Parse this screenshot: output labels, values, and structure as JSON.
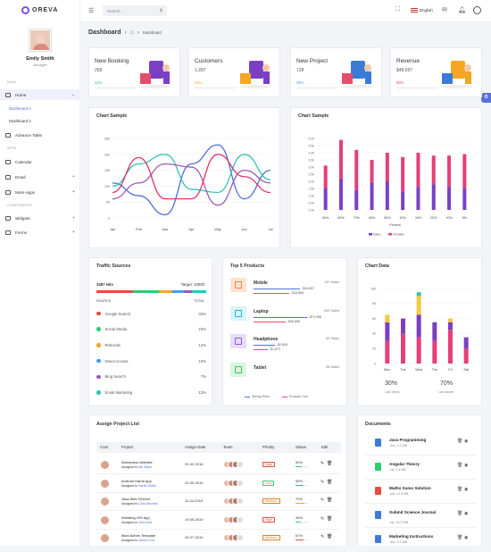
{
  "brand": {
    "name": "OREVA"
  },
  "profile": {
    "name": "Emily Smith",
    "role": "Manager"
  },
  "sidebar": {
    "sections": {
      "main": "MAIN",
      "apps": "APPS",
      "components": "COMPONENTS"
    },
    "items": [
      {
        "label": "Home"
      },
      {
        "label": "Dashboard 1"
      },
      {
        "label": "Dashboard 2"
      },
      {
        "label": "Advance Table"
      },
      {
        "label": "Calendar"
      },
      {
        "label": "Email"
      },
      {
        "label": "More Apps"
      },
      {
        "label": "Widgets"
      },
      {
        "label": "Forms"
      }
    ]
  },
  "topbar": {
    "search_placeholder": "Search...",
    "language": "English"
  },
  "breadcrumb": {
    "title": "Dashboard",
    "current": "Dashboard"
  },
  "stats": [
    {
      "label": "New Booking",
      "value": "258",
      "pct": "42%",
      "frac": 0.42,
      "color": "#2ecc71"
    },
    {
      "label": "Customers",
      "value": "1,287",
      "pct": "20%",
      "frac": 0.2,
      "color": "#f5a623"
    },
    {
      "label": "New Project",
      "value": "128",
      "pct": "25%",
      "frac": 0.25,
      "color": "#3aa0ff"
    },
    {
      "label": "Revenue",
      "value": "$48,697",
      "pct": "65%",
      "frac": 0.65,
      "color": "#e74c6c"
    }
  ],
  "chart1": {
    "title": "Chart Sample",
    "chart_data": {
      "type": "line",
      "categories": [
        "Jan",
        "Feb",
        "Mar",
        "Apr",
        "May",
        "Jun",
        "Jul"
      ],
      "yticks": [
        "0",
        "50",
        "100",
        "150",
        "200",
        "250"
      ],
      "series": [
        {
          "color": "#4a6fd8",
          "values": [
            110,
            70,
            10,
            170,
            230,
            60,
            150
          ]
        },
        {
          "color": "#2ec4b6",
          "values": [
            100,
            170,
            200,
            90,
            80,
            200,
            120
          ]
        },
        {
          "color": "#9b59b6",
          "values": [
            60,
            110,
            170,
            160,
            40,
            150,
            110
          ]
        },
        {
          "color": "#e0356b",
          "values": [
            80,
            190,
            60,
            60,
            200,
            130,
            80
          ]
        }
      ],
      "ylim": [
        0,
        250
      ]
    }
  },
  "chart2": {
    "title": "Chart Sample",
    "xlabel": "Percent",
    "legend": [
      "Sales",
      "Females"
    ],
    "chart_data": {
      "type": "bar",
      "categories": [
        "90%",
        "80%",
        "70%",
        "60%",
        "50%",
        "40%",
        "30%",
        "20%",
        "10%",
        "5%"
      ],
      "yticks": [
        "0.0K",
        "0.5K",
        "1.0K",
        "1.5K",
        "2.0K",
        "2.5K",
        "3.0K",
        "3.5K",
        "4.0K",
        "4.5K",
        "5.0K"
      ],
      "series": [
        {
          "name": "Sales",
          "color": "#7b3fc4",
          "values": [
            1.5,
            2.2,
            1.4,
            1.9,
            2.0,
            1.3,
            1.6,
            1.8,
            1.6,
            1.5
          ]
        },
        {
          "name": "Females",
          "color": "#e63e7a",
          "values": [
            1.6,
            2.7,
            2.8,
            1.6,
            2.0,
            2.4,
            2.4,
            2.0,
            2.2,
            2.4
          ]
        }
      ],
      "ylim": [
        0,
        5
      ]
    }
  },
  "traffic": {
    "title": "Traffic Sources",
    "hits": "3487 Hits",
    "target": "Target: 10000",
    "col_source": "SOURCE",
    "col_total": "TOTAL",
    "rows": [
      {
        "name": "Google Search",
        "total": "33%",
        "color": "#e74c3c"
      },
      {
        "name": "Social Media",
        "total": "23%",
        "color": "#2ecc71"
      },
      {
        "name": "Referrals",
        "total": "12%",
        "color": "#f5a623"
      },
      {
        "name": "Direct Access",
        "total": "10%",
        "color": "#3aa0ff"
      },
      {
        "name": "Bing Search",
        "total": "7%",
        "color": "#9b59b6"
      },
      {
        "name": "Email Marketing",
        "total": "13%",
        "color": "#2ec4b6"
      }
    ]
  },
  "products": {
    "title": "Top 5 Products",
    "legend": [
      "Selling Price",
      "Product Cost"
    ],
    "items": [
      {
        "name": "Mobile",
        "sales": "150 Sales",
        "price": "$24,897",
        "cost": "$18,865",
        "bg": "#fde3d6",
        "fg": "#f0843c"
      },
      {
        "name": "Laptop",
        "sales": "455 Sales",
        "price": "$74,398",
        "cost": "$45,856",
        "bg": "#d7f4fb",
        "fg": "#20b4d6"
      },
      {
        "name": "Headphone",
        "sales": "65 Sales",
        "price": "$2,839",
        "cost": "$1,872",
        "bg": "#e5dcf7",
        "fg": "#8a5ad8"
      },
      {
        "name": "Tablet",
        "sales": "58 Sales",
        "price": "",
        "cost": "",
        "bg": "#daf5df",
        "fg": "#3cc06b"
      }
    ]
  },
  "chartdata": {
    "title": "Chart Data",
    "stat1": "30%",
    "stat1_label": "Last Week",
    "stat2": "70%",
    "stat2_label": "Last Month",
    "chart_data": {
      "type": "bar",
      "categories": [
        "Mon",
        "Tue",
        "Wed",
        "Thu",
        "Fri",
        "Sat"
      ],
      "yticks": [
        "0",
        "20",
        "40",
        "60",
        "80",
        "100"
      ],
      "series": [
        {
          "color": "#e63e7a",
          "values": [
            30,
            40,
            35,
            30,
            45,
            20
          ]
        },
        {
          "color": "#7b3fc4",
          "values": [
            25,
            20,
            30,
            25,
            10,
            15
          ]
        },
        {
          "color": "#f5c842",
          "values": [
            10,
            0,
            25,
            0,
            5,
            0
          ]
        },
        {
          "color": "#2ec4b6",
          "values": [
            0,
            0,
            5,
            0,
            0,
            0
          ]
        }
      ],
      "ylim": [
        0,
        100
      ]
    }
  },
  "projects": {
    "title": "Assign Project List",
    "headers": [
      "Cust.",
      "Project",
      "Assign Date",
      "Team",
      "Priority",
      "Status",
      "Edit"
    ],
    "rows": [
      {
        "name": "Wordpress Website",
        "assigned": "Assigned to",
        "who": "Airi Satou",
        "date": "20-02-2018",
        "priority": "High",
        "pcolor": "#e74c3c",
        "status": "50%",
        "frac": 0.5,
        "scolor": "#2ecc71"
      },
      {
        "name": "Android Game App",
        "assigned": "Assigned to",
        "who": "Sarah Smith",
        "date": "22-05-2019",
        "priority": "Low",
        "pcolor": "#2ecc71",
        "status": "55%",
        "frac": 0.55,
        "scolor": "#3aa0ff"
      },
      {
        "name": "Java Web Service",
        "assigned": "Assigned to",
        "who": "Cara Stevens",
        "date": "11-04-2019",
        "priority": "Medium",
        "pcolor": "#e67e22",
        "status": "70%",
        "frac": 0.7,
        "scolor": "#f5a623"
      },
      {
        "name": "Wedding IOS App",
        "assigned": "Assigned to",
        "who": "John Doe",
        "date": "19-05-2019",
        "priority": "High",
        "pcolor": "#e74c3c",
        "status": "45%",
        "frac": 0.45,
        "scolor": "#2ecc71"
      },
      {
        "name": "Blize Admin Template",
        "assigned": "Assigned to",
        "who": "Ashton Cox",
        "date": "25-07-2019",
        "priority": "Medium",
        "pcolor": "#e67e22",
        "status": "67%",
        "frac": 0.67,
        "scolor": "#e74c3c"
      }
    ]
  },
  "documents": {
    "title": "Documents",
    "items": [
      {
        "name": "Java Programming",
        "meta": ".doc, 4.3 MB",
        "color": "#3a7bd5"
      },
      {
        "name": "Angular Theory",
        "meta": ".xls, 2.5 MB",
        "color": "#2ecc71"
      },
      {
        "name": "Maths Sums Solution",
        "meta": ".pdf, 10.5 MB",
        "color": "#e74c3c"
      },
      {
        "name": "Submit Science Journal",
        "meta": ".zip, 53.2 MB",
        "color": "#3a7bd5"
      },
      {
        "name": "Marketing Instructions",
        "meta": ".doc, 5.3 MB",
        "color": "#3a7bd5"
      }
    ]
  }
}
